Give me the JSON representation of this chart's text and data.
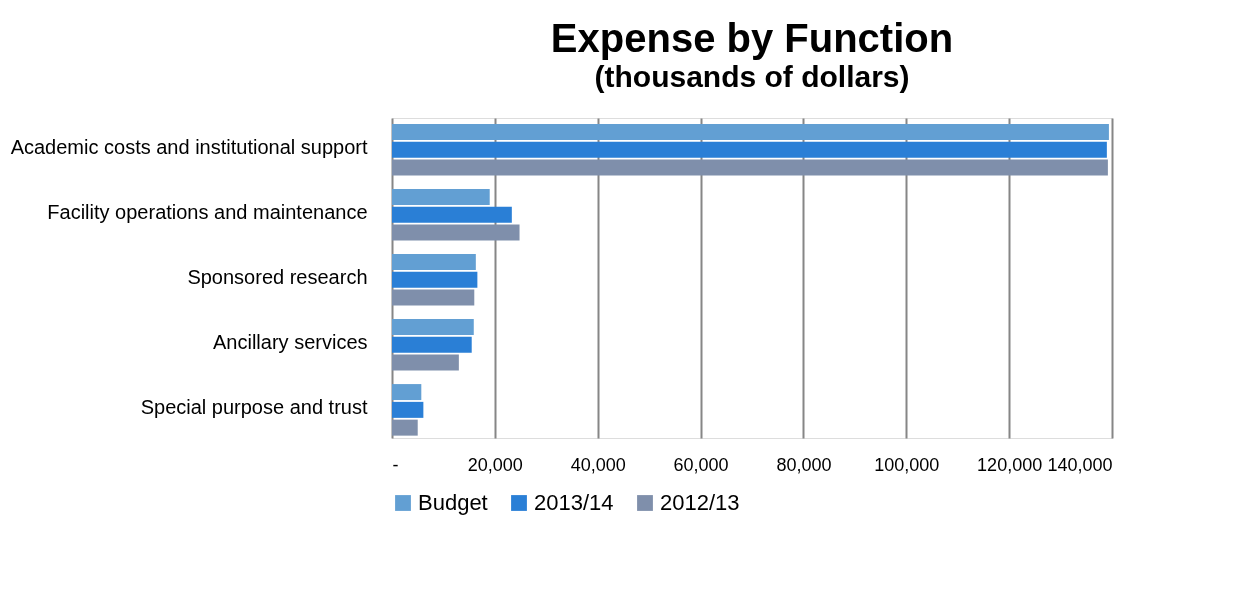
{
  "chart_data": {
    "type": "bar",
    "orientation": "horizontal",
    "title": "Expense by Function",
    "subtitle": "(thousands of dollars)",
    "categories": [
      "Academic costs and institutional support",
      "Facility operations and maintenance",
      "Sponsored research",
      "Ancillary services",
      "Special purpose and trust"
    ],
    "series": [
      {
        "name": "Budget",
        "color": "#629fd3",
        "values": [
          139400,
          19000,
          16300,
          15900,
          5700
        ]
      },
      {
        "name": "2013/14",
        "color": "#2a7fd6",
        "values": [
          139000,
          23300,
          16600,
          15500,
          6100
        ]
      },
      {
        "name": "2012/13",
        "color": "#7f8fab",
        "values": [
          139200,
          24800,
          16000,
          13000,
          5000
        ]
      }
    ],
    "xlim": [
      0,
      140000
    ],
    "xticks": [
      {
        "value": 0,
        "label": "-"
      },
      {
        "value": 20000,
        "label": "20,000"
      },
      {
        "value": 40000,
        "label": "40,000"
      },
      {
        "value": 60000,
        "label": "60,000"
      },
      {
        "value": 80000,
        "label": "80,000"
      },
      {
        "value": 100000,
        "label": "100,000"
      },
      {
        "value": 120000,
        "label": "120,000"
      },
      {
        "value": 140000,
        "label": "140,000"
      }
    ],
    "grid": "x",
    "legend": "bottom"
  }
}
